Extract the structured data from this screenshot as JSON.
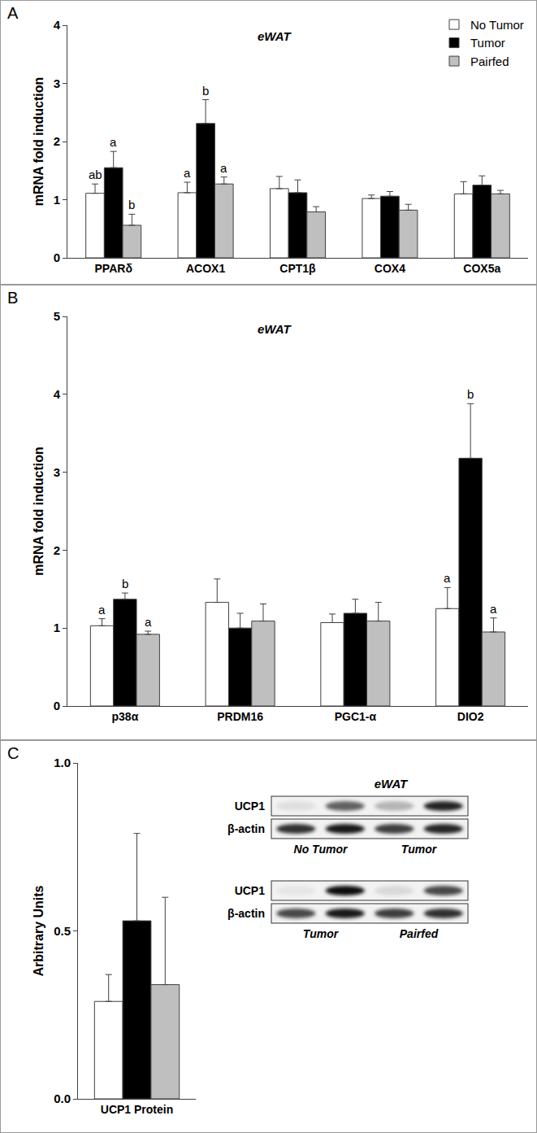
{
  "chart_data": [
    {
      "type": "bar",
      "panel": "A",
      "title": "eWAT",
      "ylabel": "mRNA fold induction",
      "legend": "top right",
      "categories": [
        "PPARδ",
        "ACOX1",
        "CPT1β",
        "COX4",
        "COX5a"
      ],
      "series": [
        {
          "name": "No Tumor",
          "color": "#ffffff",
          "values": [
            1.11,
            1.12,
            1.19,
            1.02,
            1.1
          ],
          "errors": [
            0.16,
            0.18,
            0.21,
            0.06,
            0.21
          ],
          "letters": [
            "ab",
            "a",
            null,
            null,
            null
          ]
        },
        {
          "name": "Tumor",
          "color": "#000000",
          "values": [
            1.55,
            2.31,
            1.12,
            1.06,
            1.25
          ],
          "errors": [
            0.28,
            0.41,
            0.22,
            0.08,
            0.16
          ],
          "letters": [
            "a",
            "b",
            null,
            null,
            null
          ]
        },
        {
          "name": "Pairfed",
          "color": "#bfbfbf",
          "values": [
            0.56,
            1.27,
            0.79,
            0.82,
            1.1
          ],
          "errors": [
            0.19,
            0.12,
            0.09,
            0.1,
            0.06
          ],
          "letters": [
            "b",
            "a",
            null,
            null,
            null
          ]
        }
      ],
      "ylim": [
        0,
        4
      ],
      "yticks": [
        0,
        1,
        2,
        3,
        4
      ]
    },
    {
      "type": "bar",
      "panel": "B",
      "title": "eWAT",
      "ylabel": "mRNA fold induction",
      "categories": [
        "p38α",
        "PRDM16",
        "PGC1-α",
        "DIO2"
      ],
      "series": [
        {
          "color": "#ffffff",
          "values": [
            1.03,
            1.33,
            1.07,
            1.25
          ],
          "errors": [
            0.09,
            0.3,
            0.11,
            0.27
          ],
          "letters": [
            "a",
            null,
            null,
            "a"
          ]
        },
        {
          "color": "#000000",
          "values": [
            1.37,
            1.0,
            1.19,
            3.18
          ],
          "errors": [
            0.08,
            0.19,
            0.18,
            0.7
          ],
          "letters": [
            "b",
            null,
            null,
            "b"
          ]
        },
        {
          "color": "#bfbfbf",
          "values": [
            0.92,
            1.09,
            1.09,
            0.95
          ],
          "errors": [
            0.04,
            0.22,
            0.24,
            0.18
          ],
          "letters": [
            "a",
            null,
            null,
            "a"
          ]
        }
      ],
      "ylim": [
        0,
        5
      ],
      "yticks": [
        0,
        1,
        2,
        3,
        4,
        5
      ]
    },
    {
      "type": "bar",
      "panel": "C",
      "ylabel": "Arbitrary Units",
      "categories": [
        "UCP1 Protein"
      ],
      "series": [
        {
          "color": "#ffffff",
          "values": [
            0.29
          ],
          "errors": [
            0.08
          ]
        },
        {
          "color": "#000000",
          "values": [
            0.53
          ],
          "errors": [
            0.26
          ]
        },
        {
          "color": "#bfbfbf",
          "values": [
            0.34
          ],
          "errors": [
            0.26
          ]
        }
      ],
      "ylim": [
        0,
        1
      ],
      "yticks": [
        {
          "value": 0,
          "label": "0.0"
        },
        {
          "value": 0.5,
          "label": "0.5"
        },
        {
          "value": 1,
          "label": "1.0"
        }
      ]
    }
  ],
  "blot": {
    "title": "eWAT",
    "sections": [
      {
        "rows": [
          {
            "label": "UCP1",
            "bands": [
              0.08,
              0.6,
              0.25,
              0.85
            ]
          },
          {
            "label": "β-actin",
            "bands": [
              0.8,
              0.9,
              0.75,
              0.85
            ]
          }
        ],
        "lanes": [
          "No Tumor",
          "Tumor"
        ]
      },
      {
        "rows": [
          {
            "label": "UCP1",
            "bands": [
              0.05,
              0.95,
              0.1,
              0.7
            ]
          },
          {
            "label": "β-actin",
            "bands": [
              0.7,
              0.9,
              0.75,
              0.8
            ]
          }
        ],
        "lanes": [
          "Tumor",
          "Pairfed"
        ]
      }
    ]
  }
}
